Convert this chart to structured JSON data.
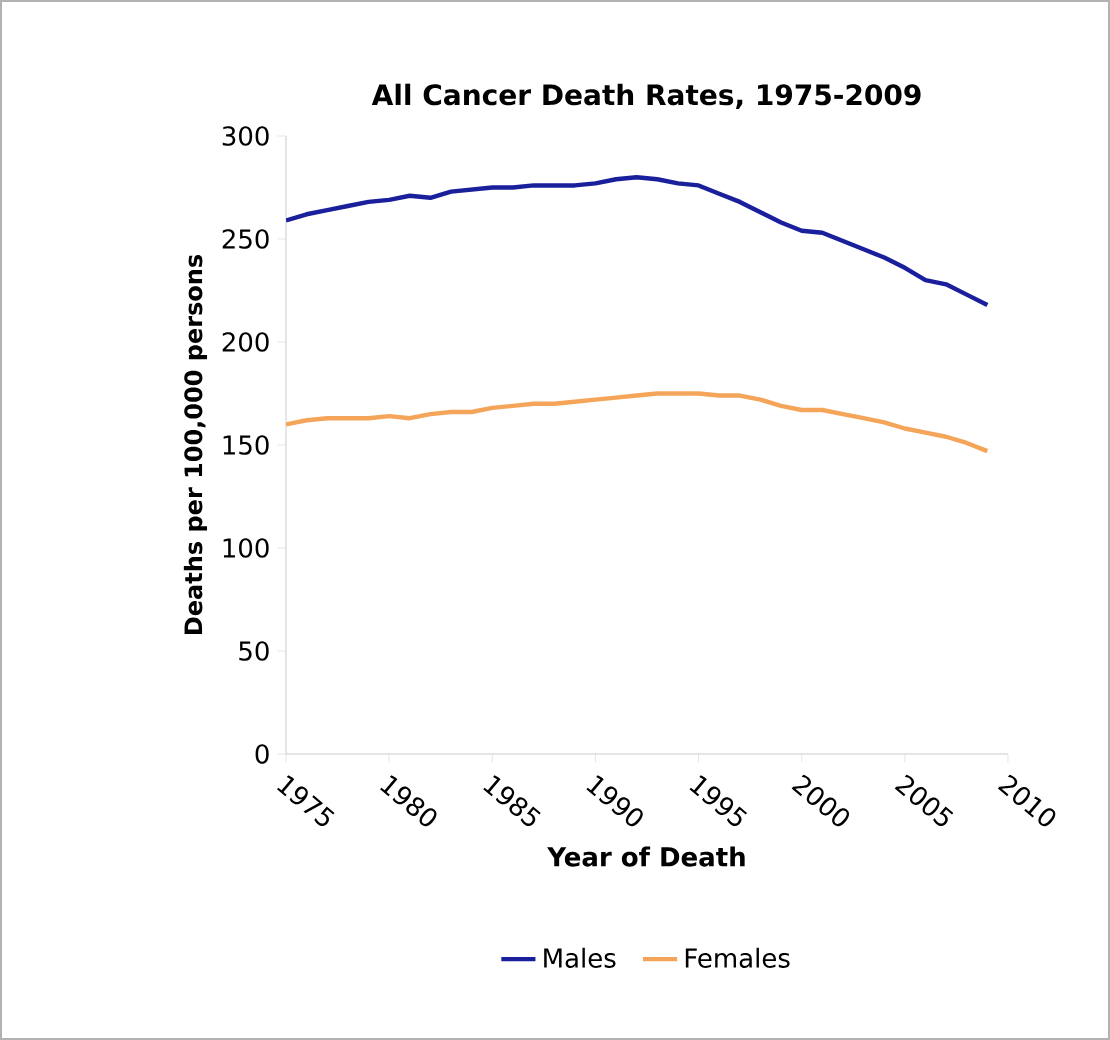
{
  "chart_data": {
    "type": "line",
    "title": "All Cancer Death Rates, 1975-2009",
    "xlabel": "Year of Death",
    "ylabel": "Deaths per 100,000 persons",
    "x": [
      1975,
      1976,
      1977,
      1978,
      1979,
      1980,
      1981,
      1982,
      1983,
      1984,
      1985,
      1986,
      1987,
      1988,
      1989,
      1990,
      1991,
      1992,
      1993,
      1994,
      1995,
      1996,
      1997,
      1998,
      1999,
      2000,
      2001,
      2002,
      2003,
      2004,
      2005,
      2006,
      2007,
      2008,
      2009
    ],
    "series": [
      {
        "name": "Males",
        "color": "#1a1f9c",
        "values": [
          259,
          262,
          264,
          266,
          268,
          269,
          271,
          270,
          273,
          274,
          275,
          275,
          276,
          276,
          276,
          277,
          279,
          280,
          279,
          277,
          276,
          272,
          268,
          263,
          258,
          254,
          253,
          249,
          245,
          241,
          236,
          230,
          228,
          223,
          218
        ]
      },
      {
        "name": "Females",
        "color": "#f5a55a",
        "values": [
          160,
          162,
          163,
          163,
          163,
          164,
          163,
          165,
          166,
          166,
          168,
          169,
          170,
          170,
          171,
          172,
          173,
          174,
          175,
          175,
          175,
          174,
          174,
          172,
          169,
          167,
          167,
          165,
          163,
          161,
          158,
          156,
          154,
          151,
          147
        ]
      }
    ],
    "xlim": [
      1975,
      2010
    ],
    "xticks": [
      1975,
      1980,
      1985,
      1990,
      1995,
      2000,
      2005,
      2010
    ],
    "ylim": [
      0,
      300
    ],
    "yticks": [
      0,
      50,
      100,
      150,
      200,
      250,
      300
    ],
    "grid": false,
    "legend": "bottom",
    "marker": "none",
    "line_style": "solid"
  }
}
